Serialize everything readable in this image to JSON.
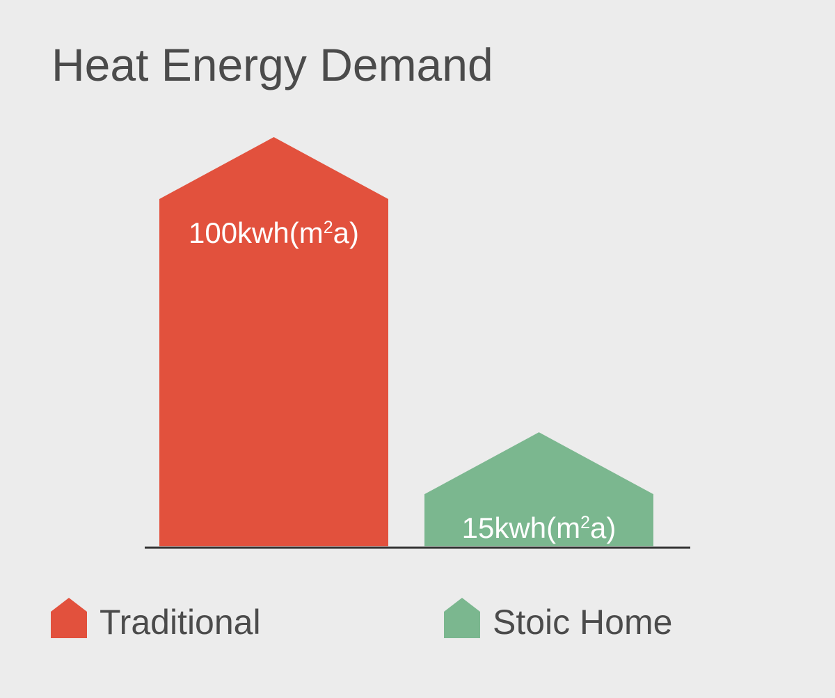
{
  "chart_data": {
    "type": "bar",
    "title": "Heat Energy Demand",
    "categories": [
      "Traditional",
      "Stoic Home"
    ],
    "values": [
      100,
      15
    ],
    "value_labels": [
      {
        "main": "100kwh(m",
        "sup": "2",
        "tail": "a)"
      },
      {
        "main": "15kwh(m",
        "sup": "2",
        "tail": "a)"
      }
    ],
    "colors": [
      "#e2513d",
      "#7bb78f"
    ],
    "bar_shape": "house",
    "legend_position": "bottom",
    "grid": false,
    "xlabel": "",
    "ylabel": ""
  },
  "legend": [
    {
      "label": "Traditional",
      "color": "#e2513d"
    },
    {
      "label": "Stoic Home",
      "color": "#7bb78f"
    }
  ]
}
